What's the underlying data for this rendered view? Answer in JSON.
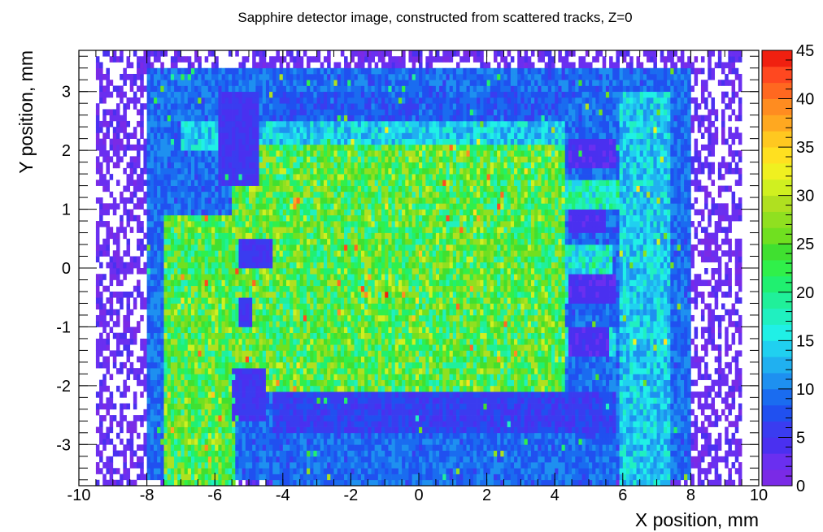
{
  "chart_data": {
    "type": "heatmap",
    "title": "Sapphire detector image, constructed from scattered tracks, Z=0",
    "xlabel": "X position, mm",
    "ylabel": "Y position, mm",
    "xlim": [
      -10,
      10
    ],
    "ylim": [
      -3.7,
      3.7
    ],
    "x_bins": 200,
    "y_bins": 74,
    "x_ticks": [
      {
        "value": -10,
        "label": "-10"
      },
      {
        "value": -8,
        "label": "-8"
      },
      {
        "value": -6,
        "label": "-6"
      },
      {
        "value": -4,
        "label": "-4"
      },
      {
        "value": -2,
        "label": "-2"
      },
      {
        "value": 0,
        "label": "0"
      },
      {
        "value": 2,
        "label": "2"
      },
      {
        "value": 4,
        "label": "4"
      },
      {
        "value": 6,
        "label": "6"
      },
      {
        "value": 8,
        "label": "8"
      },
      {
        "value": 10,
        "label": "10"
      }
    ],
    "y_ticks": [
      {
        "value": -3,
        "label": "-3"
      },
      {
        "value": -2,
        "label": "-2"
      },
      {
        "value": -1,
        "label": "-1"
      },
      {
        "value": 0,
        "label": "0"
      },
      {
        "value": 1,
        "label": "1"
      },
      {
        "value": 2,
        "label": "2"
      },
      {
        "value": 3,
        "label": "3"
      }
    ],
    "colorbar": {
      "zlim": [
        0,
        45
      ],
      "ticks": [
        {
          "value": 0,
          "label": "0"
        },
        {
          "value": 5,
          "label": "5"
        },
        {
          "value": 10,
          "label": "10"
        },
        {
          "value": 15,
          "label": "15"
        },
        {
          "value": 20,
          "label": "20"
        },
        {
          "value": 25,
          "label": "25"
        },
        {
          "value": 30,
          "label": "30"
        },
        {
          "value": 35,
          "label": "35"
        },
        {
          "value": 40,
          "label": "40"
        },
        {
          "value": 45,
          "label": "45"
        }
      ],
      "colors": [
        "#7a2ae6",
        "#6a2ff0",
        "#4a30f0",
        "#3a3cf0",
        "#2050f0",
        "#1a6cf0",
        "#1e90f0",
        "#20b0f0",
        "#20d0f0",
        "#20f0e6",
        "#20f0c0",
        "#20f09a",
        "#20f070",
        "#30f04a",
        "#40e030",
        "#70e020",
        "#90e020",
        "#b0e020",
        "#d0f020",
        "#f0f020",
        "#ffe020",
        "#ffc820",
        "#ffa820",
        "#ff8c20",
        "#ff6820",
        "#ff4820",
        "#f02010"
      ]
    },
    "regions": [
      {
        "name": "outer-halo",
        "x": [
          -9.5,
          9.5
        ],
        "y": [
          -3.7,
          3.7
        ],
        "mean": 3
      },
      {
        "name": "mid-ring",
        "x": [
          -8.0,
          8.0
        ],
        "y": [
          -3.6,
          3.4
        ],
        "mean": 9
      },
      {
        "name": "left-wing",
        "x": [
          -7.5,
          -5.4
        ],
        "y": [
          -3.7,
          0.9
        ],
        "mean": 24
      },
      {
        "name": "upper-left-band",
        "x": [
          -7.0,
          4.3
        ],
        "y": [
          2.0,
          2.5
        ],
        "mean": 14
      },
      {
        "name": "main-block",
        "x": [
          -5.5,
          4.3
        ],
        "y": [
          -2.1,
          2.1
        ],
        "mean": 24
      },
      {
        "name": "right-arm-upper",
        "x": [
          4.3,
          5.9
        ],
        "y": [
          1.0,
          1.5
        ],
        "mean": 18
      },
      {
        "name": "right-arm-middle",
        "x": [
          4.3,
          5.7
        ],
        "y": [
          -0.6,
          0.4
        ],
        "mean": 17
      },
      {
        "name": "right-arm-lower",
        "x": [
          4.3,
          5.8
        ],
        "y": [
          -1.5,
          -1.0
        ],
        "mean": 16
      },
      {
        "name": "right-column",
        "x": [
          5.9,
          7.4
        ],
        "y": [
          -3.7,
          3.0
        ],
        "mean": 14
      },
      {
        "name": "lower-band",
        "x": [
          -4.3,
          5.8
        ],
        "y": [
          -3.7,
          -2.1
        ],
        "mean": 9
      }
    ],
    "low_zones": [
      {
        "x": [
          -5.9,
          -4.7
        ],
        "y": [
          1.4,
          2.5
        ],
        "mean": 5
      },
      {
        "x": [
          -5.9,
          -4.7
        ],
        "y": [
          2.0,
          3.0
        ],
        "mean": 5
      },
      {
        "x": [
          -5.3,
          -4.3
        ],
        "y": [
          0.0,
          0.5
        ],
        "mean": 5
      },
      {
        "x": [
          -5.3,
          -4.9
        ],
        "y": [
          -1.0,
          -0.5
        ],
        "mean": 5
      },
      {
        "x": [
          -5.5,
          -4.5
        ],
        "y": [
          -2.6,
          -1.7
        ],
        "mean": 5
      },
      {
        "x": [
          -4.3,
          5.8
        ],
        "y": [
          -2.8,
          -2.1
        ],
        "mean": 6
      },
      {
        "x": [
          4.4,
          5.8
        ],
        "y": [
          1.7,
          2.2
        ],
        "mean": 4
      },
      {
        "x": [
          4.4,
          5.5
        ],
        "y": [
          0.6,
          1.0
        ],
        "mean": 4
      },
      {
        "x": [
          4.4,
          5.8
        ],
        "y": [
          -0.6,
          -0.1
        ],
        "mean": 4
      },
      {
        "x": [
          4.4,
          5.6
        ],
        "y": [
          -1.5,
          -1.0
        ],
        "mean": 4
      },
      {
        "x": [
          -4.3,
          4.3
        ],
        "y": [
          2.5,
          3.0
        ],
        "mean": 8
      }
    ],
    "grid": false,
    "colorbar_position": "right"
  }
}
